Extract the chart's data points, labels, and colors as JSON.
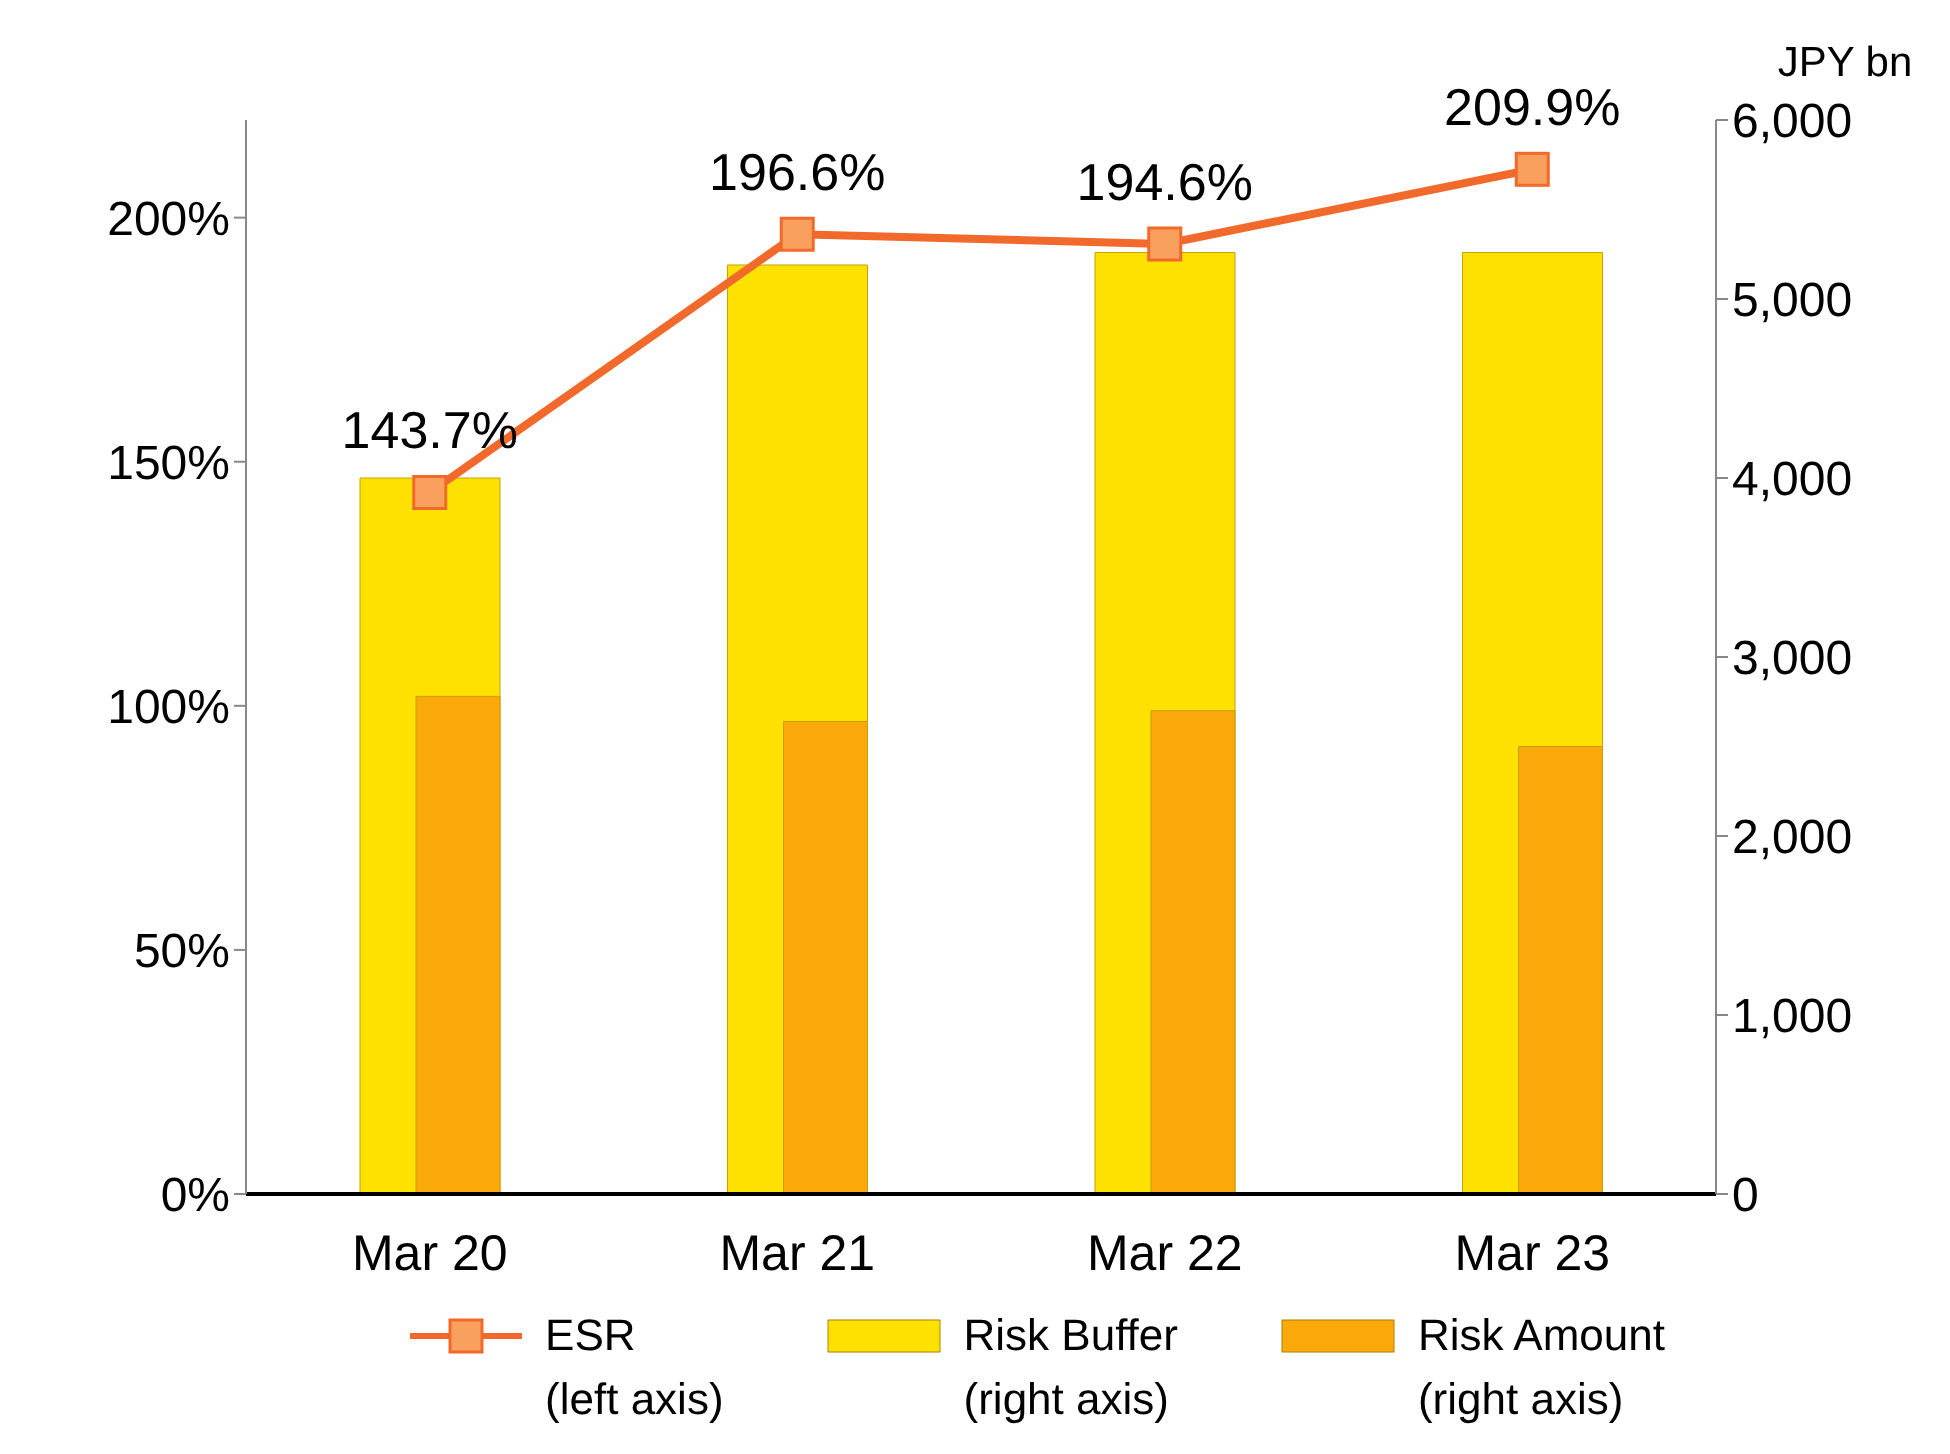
{
  "chart_data": {
    "type": "bar",
    "categories": [
      "Mar 20",
      "Mar 21",
      "Mar 22",
      "Mar 23"
    ],
    "y2label": "JPY bn",
    "series": [
      {
        "name": "ESR (left axis)",
        "type": "line",
        "axis": "y",
        "color": "#f26a2b",
        "marker": "square",
        "values": [
          143.7,
          196.6,
          194.6,
          209.9
        ],
        "value_labels": [
          "143.7%",
          "196.6%",
          "194.6%",
          "209.9%"
        ]
      },
      {
        "name": "Risk Buffer (right axis)",
        "axis": "y2",
        "color": "#ffe100",
        "values": [
          4000,
          5190,
          5260,
          5260
        ]
      },
      {
        "name": "Risk Amount (right axis)",
        "axis": "y2",
        "color": "#fba90a",
        "values": [
          2780,
          2640,
          2700,
          2500
        ]
      }
    ],
    "ylim": [
      0,
      220
    ],
    "yticks": [
      {
        "value": 0,
        "label": "0%"
      },
      {
        "value": 50,
        "label": "50%"
      },
      {
        "value": 100,
        "label": "100%"
      },
      {
        "value": 150,
        "label": "150%"
      },
      {
        "value": 200,
        "label": "200%"
      }
    ],
    "y2lim": [
      0,
      6000
    ],
    "y2ticks": [
      {
        "value": 0,
        "label": "0"
      },
      {
        "value": 1000,
        "label": "1,000"
      },
      {
        "value": 2000,
        "label": "2,000"
      },
      {
        "value": 3000,
        "label": "3,000"
      },
      {
        "value": 4000,
        "label": "4,000"
      },
      {
        "value": 5000,
        "label": "5,000"
      },
      {
        "value": 6000,
        "label": "6,000"
      }
    ],
    "grid": false,
    "legend": "bottom"
  }
}
